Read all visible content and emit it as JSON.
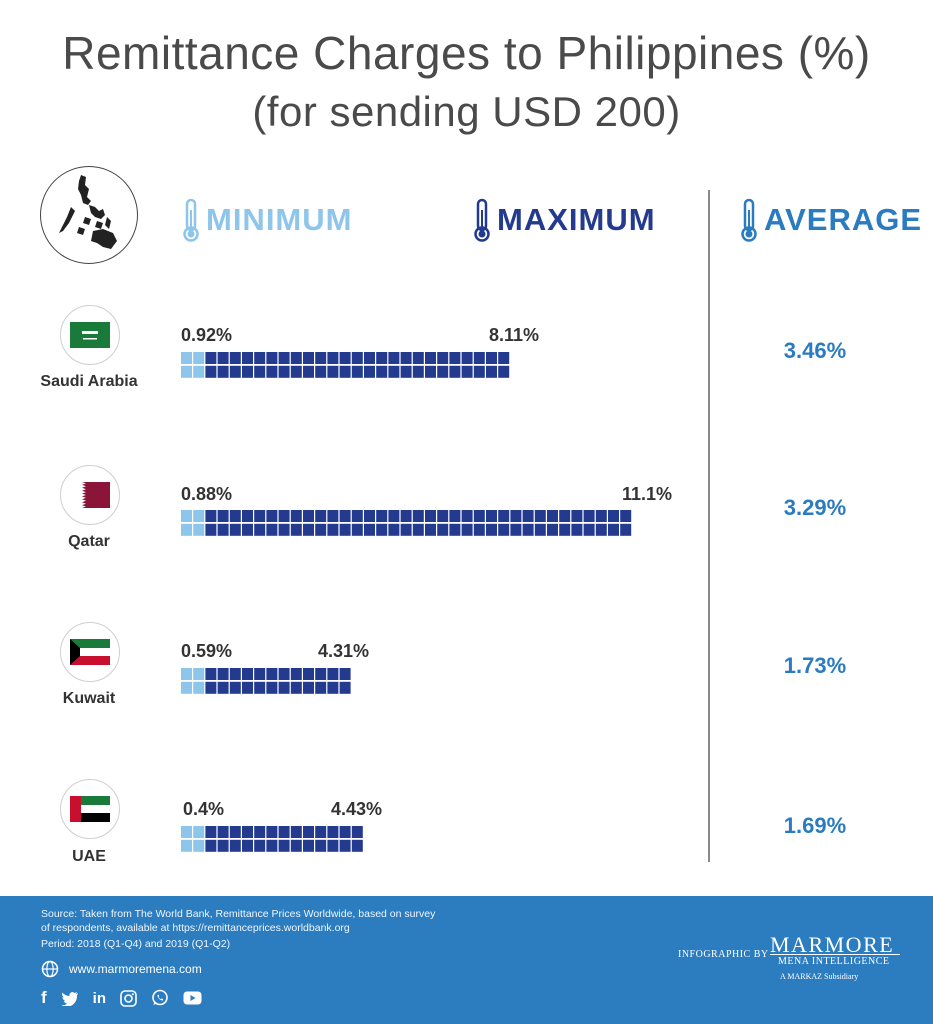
{
  "title": "Remittance Charges to Philippines (%)",
  "subtitle": "(for sending USD 200)",
  "headers": {
    "minimum": "MINIMUM",
    "maximum": "MAXIMUM",
    "average": "AVERAGE"
  },
  "colors": {
    "minimum": "#8ec5ea",
    "maximum": "#233a8f",
    "average": "#2a7bbf",
    "footer": "#2c7cc0"
  },
  "chart_data": {
    "type": "bar",
    "title": "Remittance Charges to Philippines (%)",
    "subtitle": "(for sending USD 200)",
    "categories": [
      "Saudi Arabia",
      "Qatar",
      "Kuwait",
      "UAE"
    ],
    "series": [
      {
        "name": "MINIMUM",
        "values": [
          0.92,
          0.88,
          0.59,
          0.4
        ]
      },
      {
        "name": "MAXIMUM",
        "values": [
          8.11,
          11.1,
          4.31,
          4.43
        ]
      },
      {
        "name": "AVERAGE",
        "values": [
          3.46,
          3.29,
          1.73,
          1.69
        ]
      }
    ],
    "labels": {
      "min": [
        "0.92%",
        "0.88%",
        "0.59%",
        "0.4%"
      ],
      "max": [
        "8.11%",
        "11.1%",
        "4.31%",
        "4.43%"
      ],
      "avg": [
        "3.46%",
        "3.29%",
        "1.73%",
        "1.69%"
      ]
    }
  },
  "footer": {
    "source_line1": "Source: Taken from The World Bank, Remittance Prices Worldwide, based on survey",
    "source_line2": "of respondents, available at  https://remittanceprices.worldbank.org",
    "period": "Period: 2018 (Q1-Q4) and 2019 (Q1-Q2)",
    "website": "www.marmoremena.com",
    "infographic_by": "INFOGRAPHIC BY",
    "brand": "MARMORE",
    "brand_sub": "MENA INTELLIGENCE",
    "brand_sub2": "A  MARKAZ  Subsidiary",
    "social": [
      "facebook-icon",
      "twitter-icon",
      "linkedin-icon",
      "instagram-icon",
      "whatsapp-icon",
      "youtube-icon"
    ]
  }
}
